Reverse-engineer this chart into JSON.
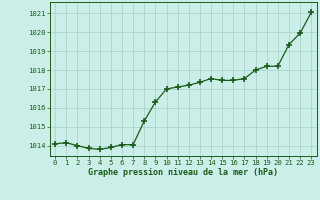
{
  "x": [
    0,
    1,
    2,
    3,
    4,
    5,
    6,
    7,
    8,
    9,
    10,
    11,
    12,
    13,
    14,
    15,
    16,
    17,
    18,
    19,
    20,
    21,
    22,
    23
  ],
  "y": [
    1014.1,
    1014.15,
    1014.0,
    1013.85,
    1013.8,
    1013.9,
    1014.05,
    1014.05,
    1015.3,
    1016.3,
    1017.0,
    1017.1,
    1017.2,
    1017.35,
    1017.55,
    1017.45,
    1017.45,
    1017.55,
    1018.0,
    1018.2,
    1018.2,
    1019.35,
    1019.95,
    1021.05
  ],
  "line_color": "#1a5c1a",
  "marker": "+",
  "marker_size": 4,
  "bg_color": "#cceee8",
  "grid_color": "#aad4cc",
  "xlabel": "Graphe pression niveau de la mer (hPa)",
  "xlabel_color": "#1a5c1a",
  "tick_color": "#1a5c1a",
  "ylabel_ticks": [
    1014,
    1015,
    1016,
    1017,
    1018,
    1019,
    1020,
    1021
  ],
  "ylim": [
    1013.45,
    1021.6
  ],
  "xlim": [
    -0.5,
    23.5
  ]
}
